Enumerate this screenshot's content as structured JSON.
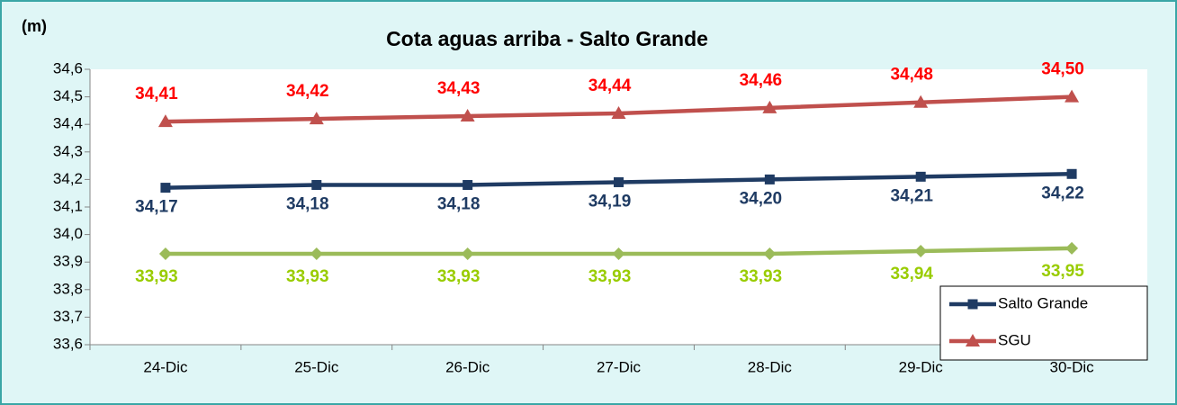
{
  "chart_data": {
    "type": "line",
    "title": "Cota aguas arriba - Salto Grande",
    "y_label": "(m)",
    "categories": [
      "24-Dic",
      "25-Dic",
      "26-Dic",
      "27-Dic",
      "28-Dic",
      "29-Dic",
      "30-Dic"
    ],
    "ylim": [
      33.6,
      34.6
    ],
    "yticks": [
      {
        "value": 33.6,
        "label": "33,6"
      },
      {
        "value": 33.7,
        "label": "33,7"
      },
      {
        "value": 33.8,
        "label": "33,8"
      },
      {
        "value": 33.9,
        "label": "33,9"
      },
      {
        "value": 34.0,
        "label": "34,0"
      },
      {
        "value": 34.1,
        "label": "34,1"
      },
      {
        "value": 34.2,
        "label": "34,2"
      },
      {
        "value": 34.3,
        "label": "34,3"
      },
      {
        "value": 34.4,
        "label": "34,4"
      },
      {
        "value": 34.5,
        "label": "34,5"
      },
      {
        "value": 34.6,
        "label": "34,6"
      }
    ],
    "legend_position": "lower right",
    "series": [
      {
        "name": "Salto Grande",
        "color": "#1f3b63",
        "label_color": "#1f3b63",
        "marker": "square",
        "values": [
          34.17,
          34.18,
          34.18,
          34.19,
          34.2,
          34.21,
          34.22
        ],
        "value_labels": [
          "34,17",
          "34,18",
          "34,18",
          "34,19",
          "34,20",
          "34,21",
          "34,22"
        ]
      },
      {
        "name": "SGU",
        "color": "#c0504d",
        "label_color": "#ff0000",
        "marker": "triangle",
        "values": [
          34.41,
          34.42,
          34.43,
          34.44,
          34.46,
          34.48,
          34.5
        ],
        "value_labels": [
          "34,41",
          "34,42",
          "34,43",
          "34,44",
          "34,46",
          "34,48",
          "34,50"
        ]
      },
      {
        "color": "#9bbb59",
        "label_color": "#99cc00",
        "marker": "diamond",
        "values": [
          33.93,
          33.93,
          33.93,
          33.93,
          33.93,
          33.94,
          33.95
        ],
        "value_labels": [
          "33,93",
          "33,93",
          "33,93",
          "33,93",
          "33,93",
          "33,94",
          "33,95"
        ]
      }
    ]
  }
}
